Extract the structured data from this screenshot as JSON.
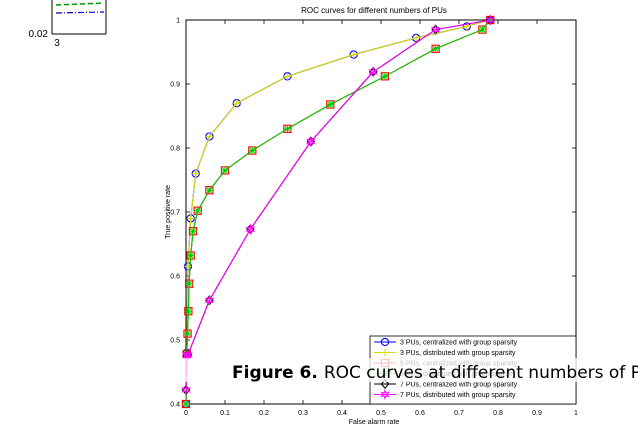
{
  "corner_fragment": {
    "tick_y": "0.02",
    "tick_x": "3"
  },
  "caption": {
    "label": "Figure 6.",
    "text": "ROC curves at different numbers of PUs"
  },
  "chart_data": {
    "type": "line",
    "title": "ROC curves for different numbers of PUs",
    "xlabel": "False alarm rate",
    "ylabel": "True positive rate",
    "xlim": [
      0,
      1
    ],
    "ylim": [
      0.4,
      1
    ],
    "xticks": [
      "0",
      "0.1",
      "0.2",
      "0.3",
      "0.4",
      "0.5",
      "0.6",
      "0.7",
      "0.8",
      "0.9",
      "1"
    ],
    "yticks": [
      "0.4",
      "0.5",
      "0.6",
      "0.7",
      "0.8",
      "0.9",
      "1"
    ],
    "grid": false,
    "legend_position": "bottom-right",
    "series": [
      {
        "name": "3 PUs, centralized with group sparsity",
        "color": "#0000ff",
        "marker": "circle",
        "x": [
          0.0,
          0.002,
          0.005,
          0.012,
          0.025,
          0.06,
          0.13,
          0.26,
          0.43,
          0.59,
          0.72,
          0.78
        ],
        "y": [
          0.4,
          0.48,
          0.615,
          0.69,
          0.76,
          0.818,
          0.87,
          0.912,
          0.946,
          0.972,
          0.99,
          1.0
        ]
      },
      {
        "name": "3 PUs, distributed with group sparsity",
        "color": "#dddd00",
        "marker": "plus",
        "x": [
          0.0,
          0.002,
          0.005,
          0.012,
          0.025,
          0.06,
          0.13,
          0.26,
          0.43,
          0.59,
          0.72,
          0.78
        ],
        "y": [
          0.4,
          0.48,
          0.615,
          0.69,
          0.76,
          0.818,
          0.87,
          0.912,
          0.946,
          0.972,
          0.99,
          1.0
        ]
      },
      {
        "name": "5 PUs, centralized with group sparsity",
        "color": "#ff0000",
        "marker": "square",
        "x": [
          0.0,
          0.002,
          0.004,
          0.006,
          0.008,
          0.012,
          0.018,
          0.03,
          0.06,
          0.1,
          0.17,
          0.26,
          0.37,
          0.51,
          0.64,
          0.76,
          0.78
        ],
        "y": [
          0.4,
          0.478,
          0.51,
          0.545,
          0.588,
          0.632,
          0.67,
          0.702,
          0.734,
          0.765,
          0.796,
          0.83,
          0.868,
          0.912,
          0.955,
          0.985,
          1.0
        ]
      },
      {
        "name": "5 PUs, distributed with group sparsity",
        "color": "#00cc00",
        "marker": "asterisk",
        "x": [
          0.0,
          0.002,
          0.004,
          0.006,
          0.008,
          0.012,
          0.018,
          0.03,
          0.06,
          0.1,
          0.17,
          0.26,
          0.37,
          0.51,
          0.64,
          0.76,
          0.78
        ],
        "y": [
          0.4,
          0.478,
          0.51,
          0.545,
          0.588,
          0.632,
          0.67,
          0.702,
          0.734,
          0.765,
          0.796,
          0.83,
          0.868,
          0.912,
          0.955,
          0.985,
          1.0
        ]
      },
      {
        "name": "7 PUs, centralized with group sparsity",
        "color": "#000000",
        "marker": "diamond",
        "x": [
          0.0,
          0.002,
          0.005,
          0.06,
          0.165,
          0.32,
          0.48,
          0.64,
          0.78
        ],
        "y": [
          0.422,
          0.475,
          0.477,
          0.562,
          0.673,
          0.81,
          0.919,
          0.985,
          1.0
        ]
      },
      {
        "name": "7 PUs, distributed with group sparsity",
        "color": "#ff00ff",
        "marker": "hexagram",
        "x": [
          0.0,
          0.002,
          0.005,
          0.06,
          0.165,
          0.32,
          0.48,
          0.64,
          0.78
        ],
        "y": [
          0.422,
          0.475,
          0.477,
          0.562,
          0.673,
          0.81,
          0.919,
          0.985,
          1.0
        ]
      }
    ]
  }
}
